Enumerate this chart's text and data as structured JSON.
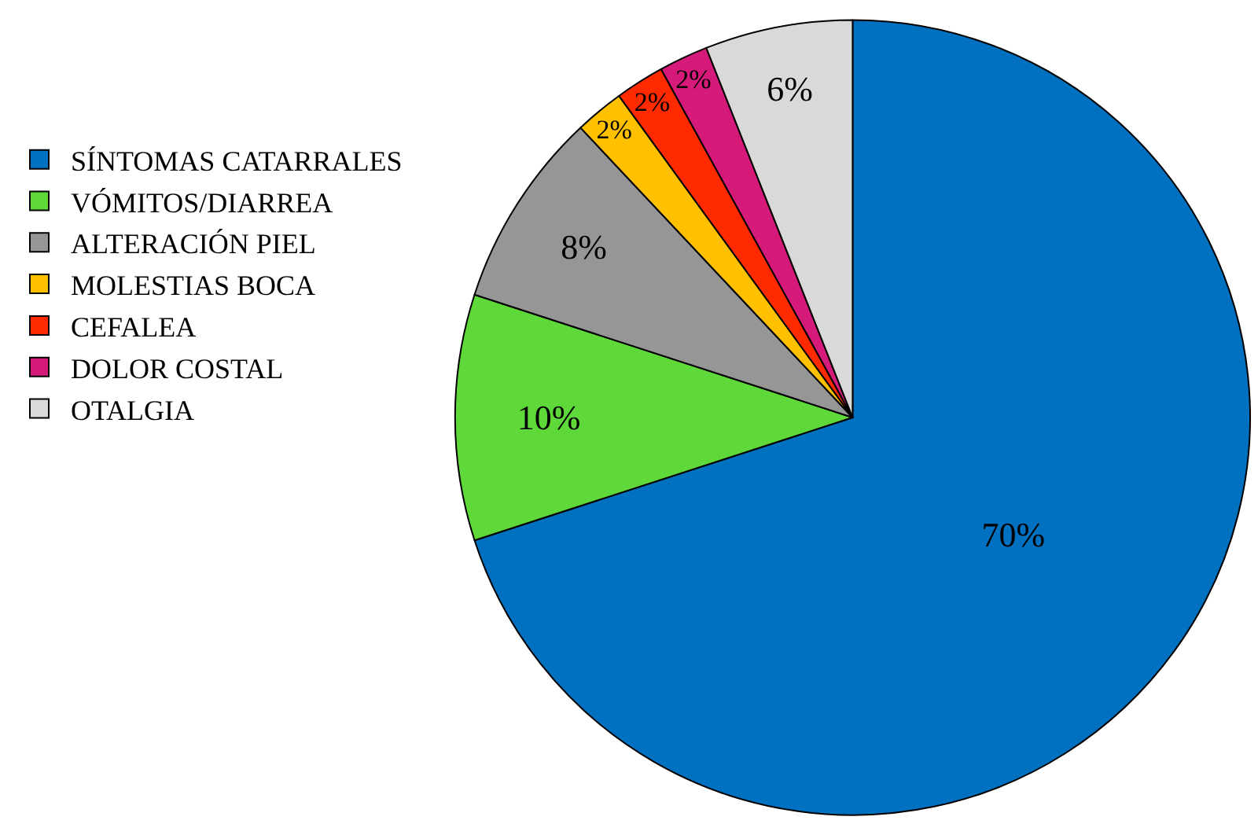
{
  "chart_data": {
    "type": "pie",
    "categories": [
      "SÍNTOMAS CATARRALES",
      "VÓMITOS/DIARREA",
      "ALTERACIÓN PIEL",
      "MOLESTIAS BOCA",
      "CEFALEA",
      "DOLOR COSTAL",
      "OTALGIA"
    ],
    "values": [
      70,
      10,
      8,
      2,
      2,
      2,
      6
    ],
    "colors": [
      "#0070c0",
      "#5fd93a",
      "#969696",
      "#ffc000",
      "#ff2a00",
      "#d61a7a",
      "#d9d9d9"
    ],
    "value_labels": [
      "70%",
      "10%",
      "8%",
      "2%",
      "2%",
      "2%",
      "6%"
    ],
    "legend": "left"
  }
}
